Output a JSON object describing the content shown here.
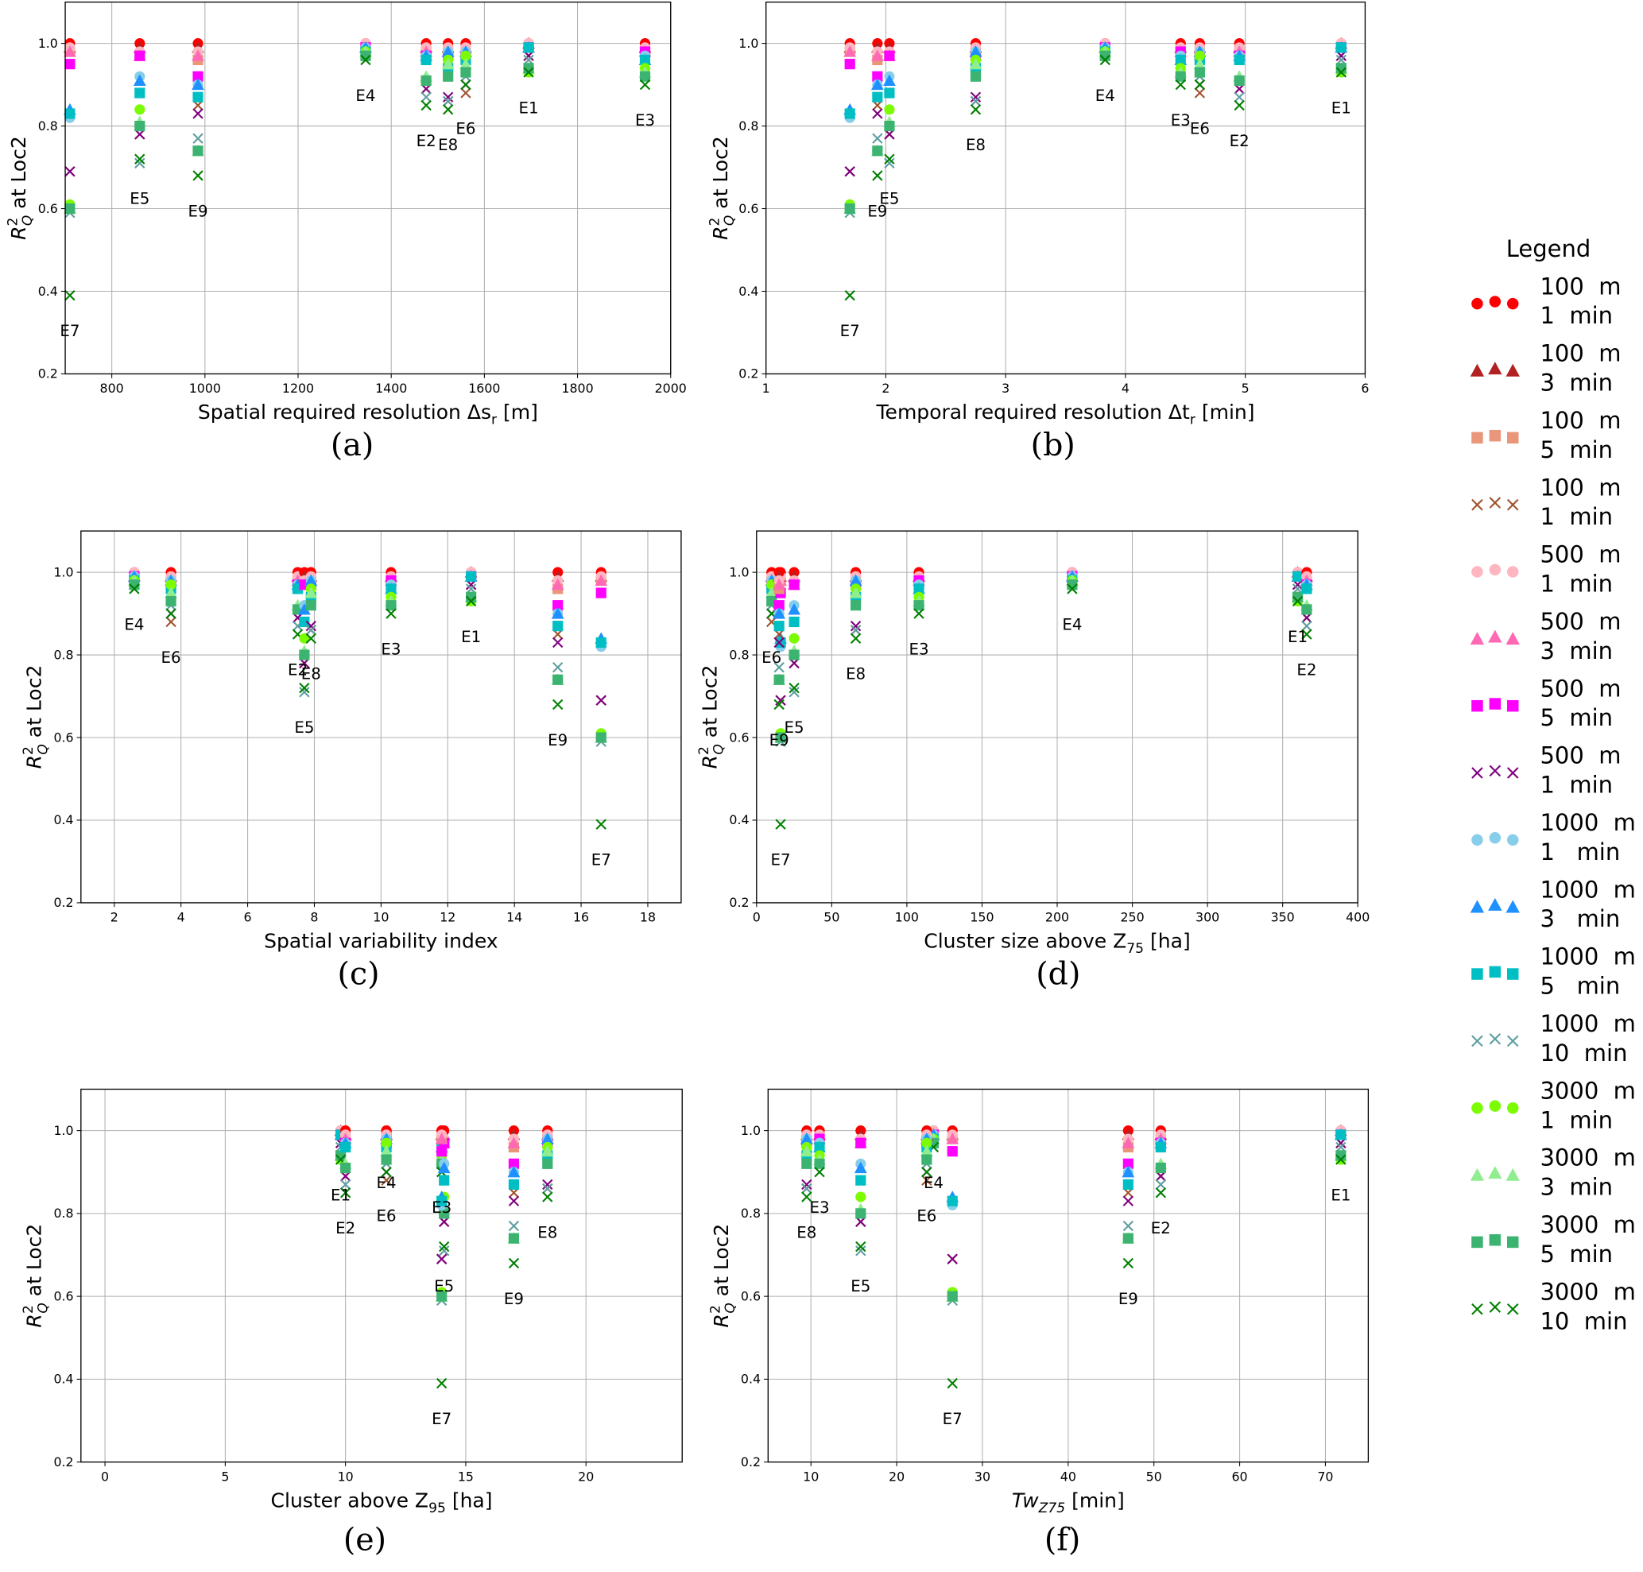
{
  "chart_data": {
    "type": "scatter",
    "ylabel": {
      "main": "R",
      "sup": "2",
      "sub": "Q",
      "tail": " at Loc2"
    },
    "ylim": [
      0.2,
      1.1
    ],
    "yticks": [
      "0.2",
      "0.4",
      "0.6",
      "0.8",
      "1.0"
    ],
    "legend": {
      "title": "Legend",
      "placement": "right"
    },
    "series": [
      {
        "line1": "100  m",
        "line2": "1  min",
        "color": "#ff0000",
        "marker": "circle"
      },
      {
        "line1": "100  m",
        "line2": "3  min",
        "color": "#b22222",
        "marker": "triangle"
      },
      {
        "line1": "100  m",
        "line2": "5  min",
        "color": "#e9967a",
        "marker": "square"
      },
      {
        "line1": "100  m",
        "line2": "1  min",
        "color": "#a0522d",
        "marker": "x"
      },
      {
        "line1": "500  m",
        "line2": "1  min",
        "color": "#ffb6c1",
        "marker": "circle"
      },
      {
        "line1": "500  m",
        "line2": "3  min",
        "color": "#ff69b4",
        "marker": "triangle"
      },
      {
        "line1": "500  m",
        "line2": "5  min",
        "color": "#ff00ff",
        "marker": "square"
      },
      {
        "line1": "500  m",
        "line2": "1  min",
        "color": "#800080",
        "marker": "x"
      },
      {
        "line1": "1000  m",
        "line2": "1   min",
        "color": "#87ceeb",
        "marker": "circle"
      },
      {
        "line1": "1000  m",
        "line2": "3   min",
        "color": "#1e90ff",
        "marker": "triangle"
      },
      {
        "line1": "1000  m",
        "line2": "5   min",
        "color": "#00bfc4",
        "marker": "square"
      },
      {
        "line1": "1000  m",
        "line2": "10  min",
        "color": "#5f9ea0",
        "marker": "x"
      },
      {
        "line1": "3000  m",
        "line2": "1  min",
        "color": "#7cfc00",
        "marker": "circle"
      },
      {
        "line1": "3000  m",
        "line2": "3  min",
        "color": "#90ee90",
        "marker": "triangle"
      },
      {
        "line1": "3000  m",
        "line2": "5  min",
        "color": "#3cb371",
        "marker": "square"
      },
      {
        "line1": "3000  m",
        "line2": "10  min",
        "color": "#008000",
        "marker": "x"
      }
    ],
    "events": [
      "E1",
      "E2",
      "E3",
      "E4",
      "E5",
      "E6",
      "E7",
      "E8",
      "E9"
    ],
    "r2": {
      "E1": [
        1.0,
        1.0,
        0.99,
        0.97,
        1.0,
        0.99,
        0.99,
        0.97,
        0.99,
        0.99,
        0.99,
        0.96,
        0.93,
        0.94,
        0.94,
        0.93
      ],
      "E2": [
        1.0,
        0.99,
        0.98,
        0.89,
        0.99,
        0.98,
        0.97,
        0.89,
        0.97,
        0.97,
        0.96,
        0.87,
        0.91,
        0.92,
        0.91,
        0.85
      ],
      "E3": [
        1.0,
        0.99,
        0.98,
        0.95,
        0.99,
        0.98,
        0.98,
        0.95,
        0.97,
        0.96,
        0.96,
        0.93,
        0.94,
        0.93,
        0.92,
        0.9
      ],
      "E4": [
        1.0,
        0.99,
        0.99,
        0.97,
        1.0,
        0.99,
        0.99,
        0.97,
        0.99,
        0.99,
        0.98,
        0.97,
        0.98,
        0.98,
        0.97,
        0.96
      ],
      "E5": [
        1.0,
        0.99,
        0.97,
        0.78,
        0.98,
        0.97,
        0.97,
        0.78,
        0.92,
        0.91,
        0.88,
        0.71,
        0.84,
        0.81,
        0.8,
        0.72
      ],
      "E6": [
        1.0,
        0.99,
        0.98,
        0.88,
        0.99,
        0.98,
        0.97,
        0.9,
        0.98,
        0.98,
        0.96,
        0.92,
        0.97,
        0.95,
        0.93,
        0.9
      ],
      "E7": [
        1.0,
        0.99,
        0.98,
        0.69,
        0.99,
        0.98,
        0.95,
        0.69,
        0.82,
        0.84,
        0.83,
        0.59,
        0.61,
        0.6,
        0.6,
        0.39
      ],
      "E8": [
        1.0,
        0.99,
        0.98,
        0.86,
        0.99,
        0.98,
        0.97,
        0.87,
        0.98,
        0.98,
        0.94,
        0.86,
        0.96,
        0.95,
        0.92,
        0.84
      ],
      "E9": [
        1.0,
        0.99,
        0.96,
        0.85,
        0.98,
        0.97,
        0.92,
        0.83,
        0.9,
        0.9,
        0.87,
        0.77,
        0.74,
        0.74,
        0.74,
        0.68
      ]
    },
    "subplots": [
      {
        "caption": "(a)",
        "xlabel": {
          "main": "Spatial required resolution Δs",
          "sub": "r",
          "tail": " [m]",
          "italic": false
        },
        "xlim": [
          700,
          2000
        ],
        "xticks": [
          800,
          1000,
          1200,
          1400,
          1600,
          1800,
          2000
        ],
        "xtick_labels": [
          "800",
          "1000",
          "1200",
          "1400",
          "1600",
          "1800",
          "2000"
        ],
        "event_x": {
          "E1": 1695,
          "E2": 1475,
          "E3": 1945,
          "E4": 1345,
          "E5": 860,
          "E6": 1560,
          "E7": 710,
          "E8": 1522,
          "E9": 985
        }
      },
      {
        "caption": "(b)",
        "xlabel": {
          "main": "Temporal required resolution Δt",
          "sub": "r",
          "tail": " [min]",
          "italic": false
        },
        "xlim": [
          1,
          6
        ],
        "xticks": [
          1,
          2,
          3,
          4,
          5,
          6
        ],
        "xtick_labels": [
          "1",
          "2",
          "3",
          "4",
          "5",
          "6"
        ],
        "event_x": {
          "E1": 5.8,
          "E2": 4.95,
          "E3": 4.46,
          "E4": 3.83,
          "E5": 2.03,
          "E6": 4.62,
          "E7": 1.7,
          "E8": 2.75,
          "E9": 1.93
        }
      },
      {
        "caption": "(c)",
        "xlabel": {
          "main": "Spatial variability index",
          "sub": "",
          "tail": "",
          "italic": false
        },
        "xlim": [
          1,
          19
        ],
        "xticks": [
          2,
          4,
          6,
          8,
          10,
          12,
          14,
          16,
          18
        ],
        "xtick_labels": [
          "2",
          "4",
          "6",
          "8",
          "10",
          "12",
          "14",
          "16",
          "18"
        ],
        "event_x": {
          "E1": 12.7,
          "E2": 7.5,
          "E3": 10.3,
          "E4": 2.6,
          "E5": 7.7,
          "E6": 3.7,
          "E7": 16.6,
          "E8": 7.9,
          "E9": 15.3
        }
      },
      {
        "caption": "(d)",
        "xlabel": {
          "main": "Cluster size above Z",
          "sub": "75",
          "tail": " [ha]",
          "italic": false
        },
        "xlim": [
          0,
          400
        ],
        "xticks": [
          0,
          50,
          100,
          150,
          200,
          250,
          300,
          350,
          400
        ],
        "xtick_labels": [
          "0",
          "50",
          "100",
          "150",
          "200",
          "250",
          "300",
          "350",
          "400"
        ],
        "event_x": {
          "E1": 360,
          "E2": 366,
          "E3": 108,
          "E4": 210,
          "E5": 25,
          "E6": 10,
          "E7": 16,
          "E8": 66,
          "E9": 15
        }
      },
      {
        "caption": "(e)",
        "xlabel": {
          "main": "Cluster above Z",
          "sub": "95",
          "tail": " [ha]",
          "italic": false
        },
        "xlim": [
          -1,
          24
        ],
        "xticks": [
          0,
          5,
          10,
          15,
          20
        ],
        "xtick_labels": [
          "0",
          "5",
          "10",
          "15",
          "20"
        ],
        "event_x": {
          "E1": 9.8,
          "E2": 10.0,
          "E3": 14.0,
          "E4": 11.7,
          "E5": 14.1,
          "E6": 11.7,
          "E7": 14.0,
          "E8": 18.4,
          "E9": 17.0
        }
      },
      {
        "caption": "(f)",
        "xlabel": {
          "main": "Tw",
          "sub": "Z75",
          "tail": " [min]",
          "italic": true
        },
        "xlim": [
          5,
          75
        ],
        "xticks": [
          10,
          20,
          30,
          40,
          50,
          60,
          70
        ],
        "xtick_labels": [
          "10",
          "20",
          "30",
          "40",
          "50",
          "60",
          "70"
        ],
        "event_x": {
          "E1": 71.8,
          "E2": 50.8,
          "E3": 11.0,
          "E4": 24.3,
          "E5": 15.8,
          "E6": 23.5,
          "E7": 26.5,
          "E8": 9.5,
          "E9": 47.0
        }
      }
    ]
  }
}
